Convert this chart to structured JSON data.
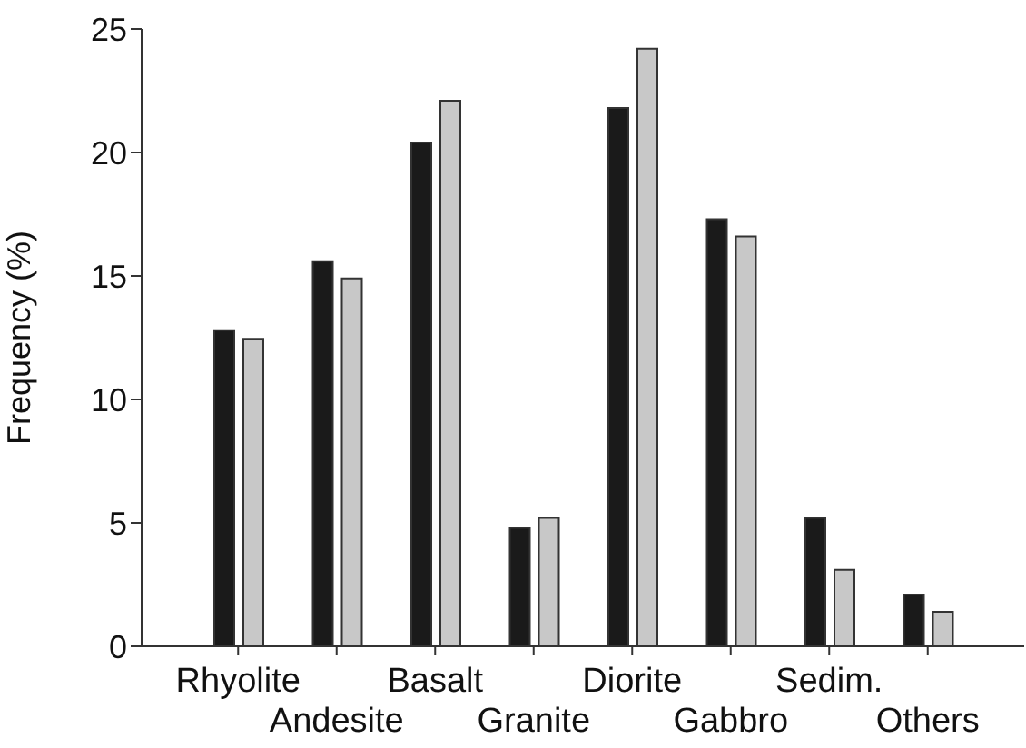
{
  "chart_data": {
    "type": "bar",
    "ylabel": "Frequency (%)",
    "categories": [
      "Rhyolite",
      "Andesite",
      "Basalt",
      "Granite",
      "Diorite",
      "Gabbro",
      "Sedim.",
      "Others"
    ],
    "series": [
      {
        "color": "#1a1a1a",
        "values": [
          12.8,
          15.6,
          20.4,
          4.8,
          21.8,
          17.3,
          5.2,
          2.1
        ]
      },
      {
        "color": "#c8c8c8",
        "values": [
          12.45,
          14.9,
          22.1,
          5.2,
          24.2,
          16.6,
          3.1,
          1.4
        ]
      }
    ],
    "ylim": [
      0,
      25
    ],
    "yticks": [
      0,
      5,
      10,
      15,
      20,
      25
    ],
    "grid": false,
    "legend": false
  }
}
